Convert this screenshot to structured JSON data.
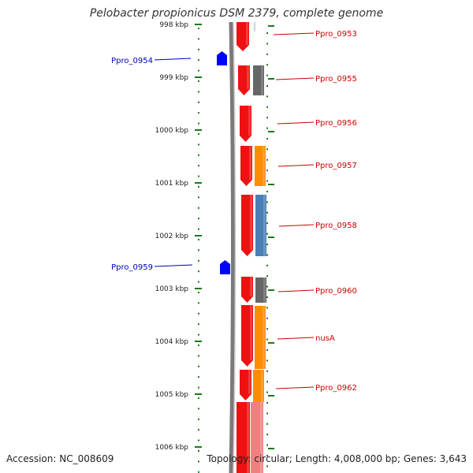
{
  "title": "Pelobacter propionicus DSM 2379, complete genome",
  "footer": {
    "accession": "Accession: NC_008609",
    "summary": "Topology: circular; Length: 4,008,000 bp; Genes: 3,643"
  },
  "colors": {
    "tick": "#1a7a1a",
    "label_forward": "#cc0000",
    "label_reverse": "#0000bb",
    "gene_red": "#ee1111",
    "gene_gray": "#666666",
    "gene_orange": "#ff8c00",
    "gene_blue": "#4a7fb5",
    "gene_pink": "#f08080",
    "gene_blue_reverse": "#0000ff"
  },
  "scale_labels": [
    "998 kbp",
    "999 kbp",
    "1000 kbp",
    "1001 kbp",
    "1002 kbp",
    "1003 kbp",
    "1004 kbp",
    "1005 kbp",
    "1006 kbp"
  ],
  "forward_genes": [
    "Ppro_0953",
    "Ppro_0955",
    "Ppro_0956",
    "Ppro_0957",
    "Ppro_0958",
    "Ppro_0960",
    "nusA",
    "Ppro_0962"
  ],
  "reverse_genes": [
    "Ppro_0954",
    "Ppro_0959"
  ]
}
